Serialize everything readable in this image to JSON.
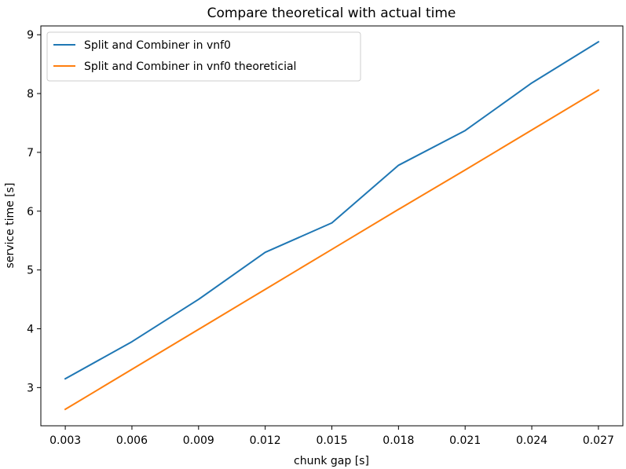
{
  "chart_data": {
    "type": "line",
    "title": "Compare theoretical with actual time",
    "xlabel": "chunk gap [s]",
    "ylabel": "service time [s]",
    "x": [
      0.003,
      0.006,
      0.009,
      0.012,
      0.015,
      0.018,
      0.021,
      0.024,
      0.027
    ],
    "x_tick_labels": [
      "0.003",
      "0.006",
      "0.009",
      "0.012",
      "0.015",
      "0.018",
      "0.021",
      "0.024",
      "0.027"
    ],
    "y_ticks": [
      3,
      4,
      5,
      6,
      7,
      8,
      9
    ],
    "y_tick_labels": [
      "3",
      "4",
      "5",
      "6",
      "7",
      "8",
      "9"
    ],
    "xlim": [
      0.0019,
      0.0281
    ],
    "ylim": [
      2.35,
      9.15
    ],
    "grid": false,
    "legend_position": "top-left",
    "series": [
      {
        "name": "Split and Combiner in vnf0",
        "color": "#1f77b4",
        "values": [
          3.15,
          3.78,
          4.5,
          5.3,
          5.8,
          6.78,
          7.37,
          8.18,
          8.88
        ]
      },
      {
        "name": "Split and Combiner in vnf0 theoreticial",
        "color": "#ff7f0e",
        "values": [
          2.63,
          3.31,
          3.99,
          4.67,
          5.35,
          6.03,
          6.7,
          7.38,
          8.06
        ]
      }
    ]
  }
}
